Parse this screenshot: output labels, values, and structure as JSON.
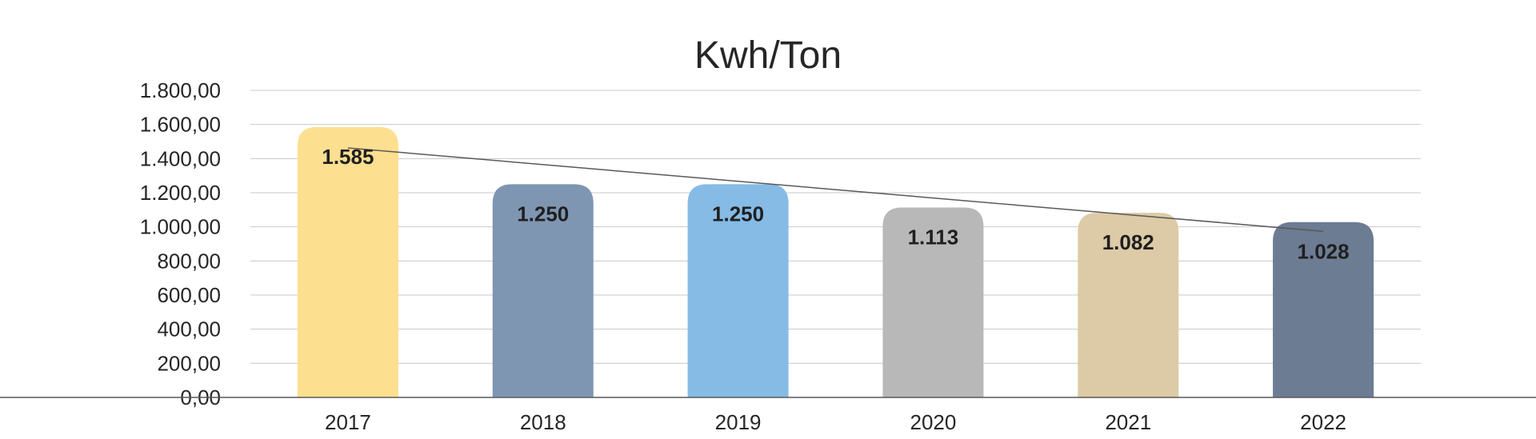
{
  "chart_data": {
    "type": "bar",
    "title": "Kwh/Ton",
    "xlabel": "",
    "ylabel": "",
    "categories": [
      "2017",
      "2018",
      "2019",
      "2020",
      "2021",
      "2022"
    ],
    "values": [
      1585,
      1250,
      1250,
      1113,
      1082,
      1028
    ],
    "value_labels": [
      "1.585",
      "1.250",
      "1.250",
      "1.113",
      "1.082",
      "1.028"
    ],
    "bar_colors": [
      "#FCDF8F",
      "#7F96B2",
      "#85BBE5",
      "#B8B8B8",
      "#DDCAA6",
      "#6C7C93"
    ],
    "yticks": [
      0,
      200,
      400,
      600,
      800,
      1000,
      1200,
      1400,
      1600,
      1800
    ],
    "ytick_labels": [
      "0,00",
      "200,00",
      "400,00",
      "600,00",
      "800,00",
      "1.000,00",
      "1.200,00",
      "1.400,00",
      "1.600,00",
      "1.800,00"
    ],
    "ylim": [
      0,
      1800
    ],
    "grid": true,
    "legend": "none",
    "trendline": true
  }
}
